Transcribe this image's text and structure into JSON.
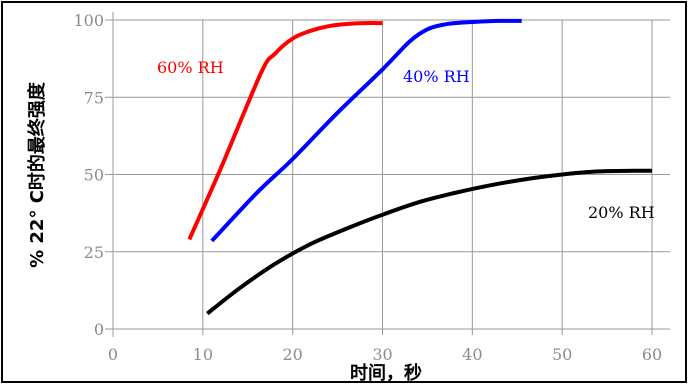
{
  "chart_data": {
    "type": "line",
    "title": "",
    "xlabel": "时间，秒",
    "ylabel": "% 22° C时的最终强度",
    "xlim": [
      0,
      60
    ],
    "ylim": [
      0,
      100
    ],
    "x_ticks": [
      "0",
      "10",
      "20",
      "30",
      "40",
      "50",
      "60"
    ],
    "y_ticks": [
      "0",
      "25",
      "50",
      "75",
      "100"
    ],
    "grid": true,
    "series": [
      {
        "name": "60% RH",
        "color": "#ff0000",
        "x": [
          8.5,
          12,
          16.5,
          18,
          20,
          22,
          24,
          26,
          28,
          30
        ],
        "y": [
          29,
          52,
          83,
          89,
          94,
          96.5,
          98,
          98.7,
          99,
          99
        ]
      },
      {
        "name": "40% RH",
        "color": "#0000ff",
        "x": [
          11,
          16,
          20,
          25,
          30,
          33,
          35,
          37,
          39,
          41,
          43,
          45.5
        ],
        "y": [
          28.5,
          44,
          55,
          70,
          84,
          93,
          97,
          98.6,
          99.2,
          99.5,
          99.7,
          99.7
        ]
      },
      {
        "name": "20% RH",
        "color": "#000000",
        "x": [
          10.5,
          14,
          18,
          22,
          26,
          30,
          34,
          38,
          42,
          46,
          50,
          54,
          58,
          60
        ],
        "y": [
          5,
          13,
          21,
          27.5,
          32.5,
          37,
          41,
          44,
          46.5,
          48.5,
          50,
          51,
          51.2,
          51.2
        ]
      }
    ]
  }
}
